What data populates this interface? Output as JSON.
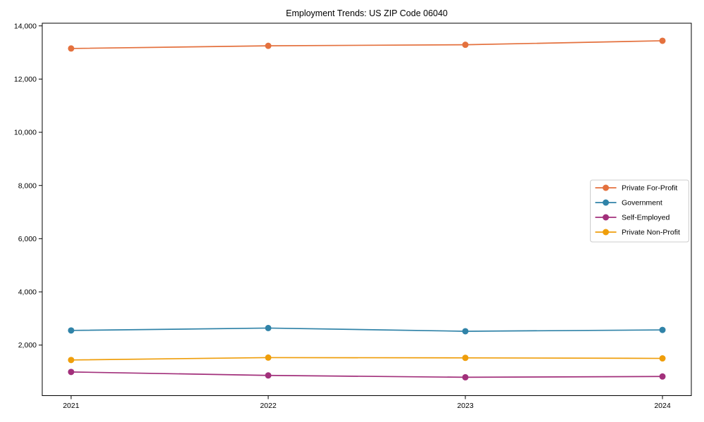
{
  "figure": {
    "title": "Employment Trends: US ZIP Code 06040"
  },
  "chart_data": {
    "type": "line",
    "title": "Employment Trends: US ZIP Code 06040",
    "xlabel": "",
    "ylabel": "",
    "x": [
      2021,
      2022,
      2023,
      2024
    ],
    "x_tick_labels": [
      "2021",
      "2022",
      "2023",
      "2024"
    ],
    "ylim": [
      100,
      14100
    ],
    "yticks": [
      2000,
      4000,
      6000,
      8000,
      10000,
      12000,
      14000
    ],
    "ytick_labels": [
      "2,000",
      "4,000",
      "6,000",
      "8,000",
      "10,000",
      "12,000",
      "14,000"
    ],
    "grid": false,
    "legend_position": "center right",
    "frame_color": "#000000",
    "legend_border_color": "#cccccc",
    "series": [
      {
        "name": "Private For-Profit",
        "color": "#E4713E",
        "values": [
          13150,
          13250,
          13290,
          13440
        ]
      },
      {
        "name": "Government",
        "color": "#3083A8",
        "values": [
          2550,
          2640,
          2520,
          2570
        ]
      },
      {
        "name": "Self-Employed",
        "color": "#A2307B",
        "values": [
          990,
          860,
          790,
          820
        ]
      },
      {
        "name": "Private Non-Profit",
        "color": "#EF9E0B",
        "values": [
          1440,
          1530,
          1520,
          1500
        ]
      }
    ]
  }
}
